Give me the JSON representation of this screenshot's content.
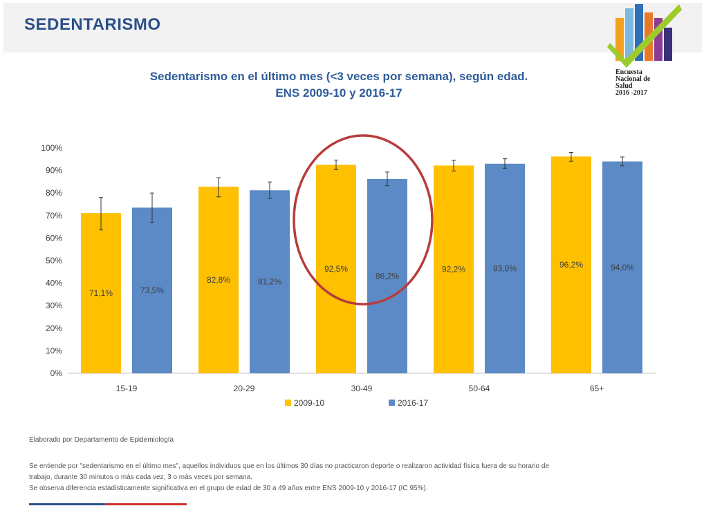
{
  "header": {
    "title": "SEDENTARISMO"
  },
  "logo": {
    "lines": [
      "Encuesta",
      "Nacional de",
      "Salud",
      "2016 -2017"
    ]
  },
  "chart_data": {
    "type": "bar",
    "title_lines": [
      "Sedentarismo en el último mes (<3 veces por semana), según edad.",
      "ENS 2009-10 y 2016-17"
    ],
    "categories": [
      "15-19",
      "20-29",
      "30-49",
      "50-64",
      "65+"
    ],
    "series": [
      {
        "name": "2009-10",
        "color": "#ffc000",
        "values": [
          71.1,
          82.8,
          92.5,
          92.2,
          96.2
        ],
        "labels": [
          "71,1%",
          "82,8%",
          "92,5%",
          "92,2%",
          "96,2%"
        ],
        "err_low": [
          63.6,
          78.3,
          90.4,
          89.8,
          94.1
        ],
        "err_high": [
          78.0,
          86.8,
          94.6,
          94.5,
          98.0
        ]
      },
      {
        "name": "2016-17",
        "color": "#5b8ac6",
        "values": [
          73.5,
          81.2,
          86.2,
          93.0,
          94.0
        ],
        "labels": [
          "73,5%",
          "81,2%",
          "86,2%",
          "93,0%",
          "94,0%"
        ],
        "err_low": [
          66.9,
          77.6,
          83.2,
          91.0,
          92.1
        ],
        "err_high": [
          80.0,
          84.9,
          89.3,
          95.2,
          96.0
        ]
      }
    ],
    "ylim": [
      0,
      100
    ],
    "yticks": [
      "0%",
      "10%",
      "20%",
      "30%",
      "40%",
      "50%",
      "60%",
      "70%",
      "80%",
      "90%",
      "100%"
    ],
    "legend_position": "bottom",
    "annotation": "red ellipse highlighting 30-49"
  },
  "footer": {
    "credit": "Elaborado por Departamento de Epidemiología",
    "note_lines": [
      "Se entiende por \"sedentarismo en el último mes\", aquellos individuos que en los últimos 30 días no practicaron deporte o realizaron actividad física fuera de su horario de",
      "trabajo, durante 30 minutos o más cada vez, 3 o más veces por semana.",
      "Se observa diferencia estadísticamente significativa en el grupo de edad de 30 a 49 años entre ENS 2009-10 y 2016-17 (IC 95%)."
    ]
  }
}
